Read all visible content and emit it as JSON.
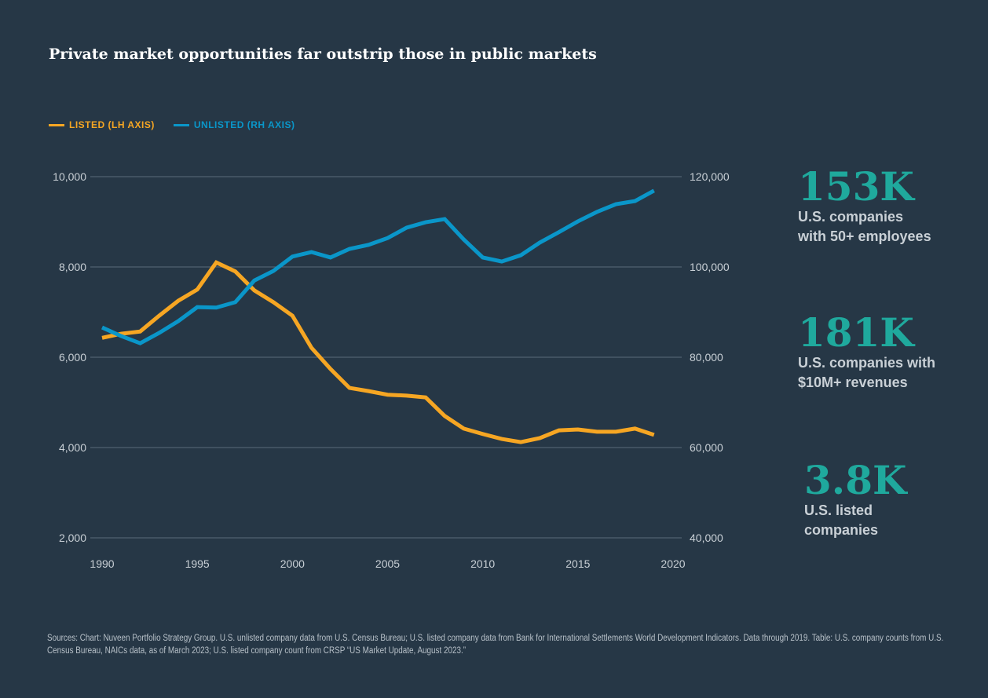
{
  "title": "Private market opportunities far outstrip those in public markets",
  "colors": {
    "background": "#263746",
    "listed": "#f6a623",
    "unlisted": "#0a96c9",
    "stat": "#1fa99d",
    "grid": "#5b6b79"
  },
  "chart_data": {
    "type": "line",
    "title": "Private market opportunities far outstrip those in public markets",
    "x": [
      1990,
      1991,
      1992,
      1993,
      1994,
      1995,
      1996,
      1997,
      1998,
      1999,
      2000,
      2001,
      2002,
      2003,
      2004,
      2005,
      2006,
      2007,
      2008,
      2009,
      2010,
      2011,
      2012,
      2013,
      2014,
      2015,
      2016,
      2017,
      2018,
      2019
    ],
    "series": [
      {
        "name": "LISTED (LH AXIS)",
        "axis": "left",
        "values": [
          6430,
          6520,
          6570,
          6920,
          7250,
          7500,
          8100,
          7900,
          7480,
          7220,
          6920,
          6210,
          5740,
          5320,
          5250,
          5170,
          5150,
          5110,
          4700,
          4420,
          4300,
          4190,
          4120,
          4210,
          4380,
          4400,
          4350,
          4350,
          4420,
          4280
        ]
      },
      {
        "name": "UNLISTED (RH AXIS)",
        "axis": "right",
        "values": [
          86600,
          84700,
          83100,
          85400,
          88000,
          91100,
          91000,
          92200,
          97000,
          99100,
          102300,
          103300,
          102100,
          104000,
          104900,
          106400,
          108700,
          109900,
          110600,
          106100,
          102100,
          101200,
          102600,
          105400,
          107700,
          110100,
          112200,
          113900,
          114600,
          116900
        ]
      }
    ],
    "xlim": [
      1990,
      2020
    ],
    "xticks": [
      "1990",
      "1995",
      "2000",
      "2005",
      "2010",
      "2015",
      "2020"
    ],
    "ylim_left": [
      2000,
      10000
    ],
    "yticks_left": [
      "2,000",
      "4,000",
      "6,000",
      "8,000",
      "10,000"
    ],
    "ylim_right": [
      40000,
      120000
    ],
    "yticks_right": [
      "40,000",
      "60,000",
      "80,000",
      "100,000",
      "120,000"
    ],
    "grid": "horizontal",
    "legend": "top-left"
  },
  "stats": [
    {
      "value": "153K",
      "label": "U.S. companies\nwith 50+ employees"
    },
    {
      "value": "181K",
      "label": "U.S. companies with\n$10M+ revenues"
    },
    {
      "value": "3.8K",
      "label": "U.S. listed\ncompanies"
    }
  ],
  "sources": "Sources: Chart: Nuveen Portfolio Strategy Group. U.S. unlisted company data from U.S. Census Bureau; U.S. listed company data from Bank for International Settlements World Development Indicators. Data through 2019. Table: U.S. company counts from U.S. Census Bureau, NAICs data, as of March 2023; U.S. listed company count from CRSP “US Market Update, August 2023.”"
}
